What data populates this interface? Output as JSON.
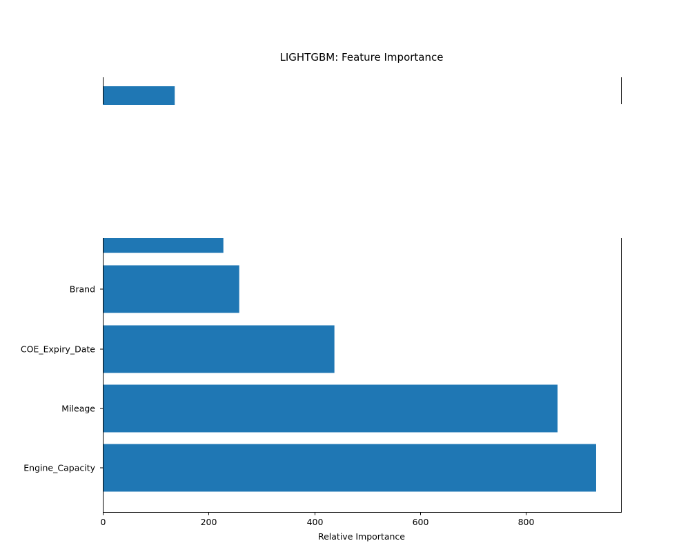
{
  "chart_data": {
    "type": "bar",
    "orientation": "horizontal",
    "title": "LIGHTGBM: Feature Importance",
    "xlabel": "Relative Importance",
    "ylabel": "",
    "xlim": [
      0,
      980
    ],
    "x_ticks": [
      0,
      200,
      400,
      600,
      800
    ],
    "x_tick_labels": [
      "0",
      "200",
      "400",
      "600",
      "800"
    ],
    "categories": [
      "Engine_Capacity",
      "Mileage",
      "COE_Expiry_Date",
      "Brand",
      "",
      ""
    ],
    "values": [
      933,
      860,
      438,
      258,
      228,
      136
    ],
    "bar_color": "#1f77b4",
    "grid": false,
    "legend": "none"
  }
}
